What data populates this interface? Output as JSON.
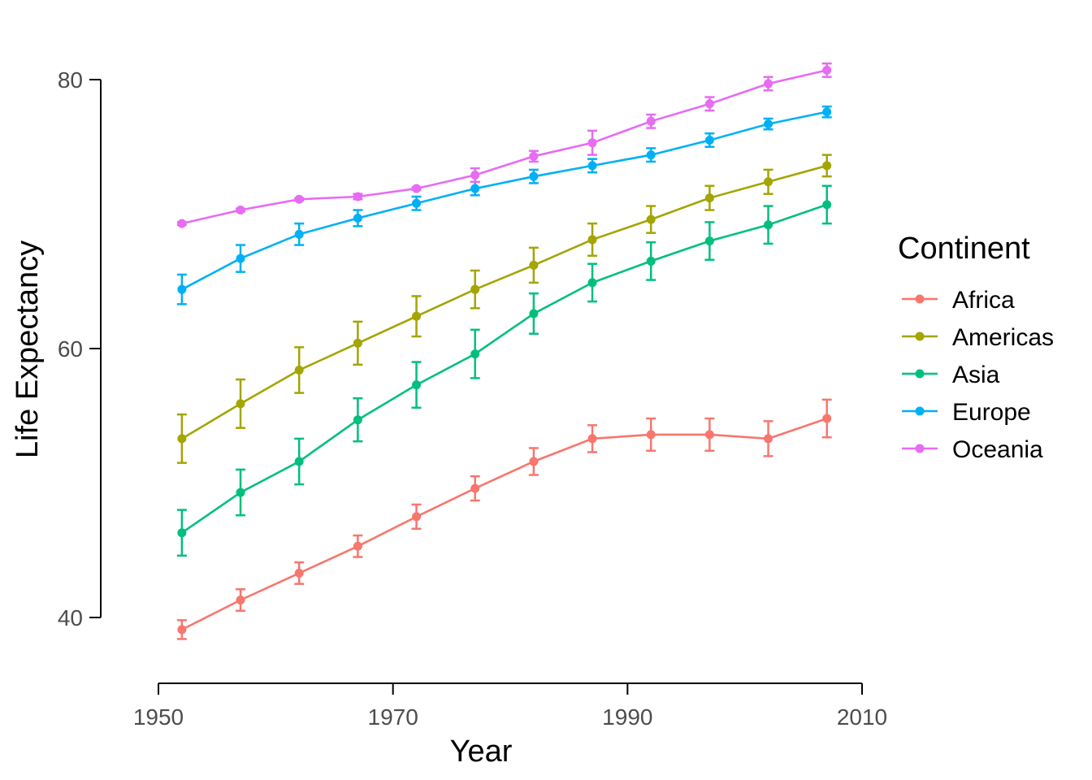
{
  "chart_data": {
    "type": "line",
    "title": "",
    "xlabel": "Year",
    "ylabel": "Life Expectancy",
    "xlim": [
      1950,
      2010
    ],
    "ylim": [
      40,
      80
    ],
    "x_ticks": [
      "1950",
      "1970",
      "1990",
      "2010"
    ],
    "y_ticks": [
      "40",
      "60",
      "80"
    ],
    "x": [
      1952,
      1957,
      1962,
      1967,
      1972,
      1977,
      1982,
      1987,
      1992,
      1997,
      2002,
      2007
    ],
    "error_bars": true,
    "grid": false,
    "legend": {
      "title": "Continent",
      "position": "right"
    },
    "series": [
      {
        "name": "Africa",
        "color": "#F8766D",
        "values": [
          39.1,
          41.3,
          43.3,
          45.3,
          47.5,
          49.6,
          51.6,
          53.3,
          53.6,
          53.6,
          53.3,
          54.8
        ],
        "errors": [
          0.7,
          0.8,
          0.8,
          0.8,
          0.9,
          0.9,
          1.0,
          1.0,
          1.2,
          1.2,
          1.3,
          1.4
        ]
      },
      {
        "name": "Americas",
        "color": "#A3A500",
        "values": [
          53.3,
          55.9,
          58.4,
          60.4,
          62.4,
          64.4,
          66.2,
          68.1,
          69.6,
          71.2,
          72.4,
          73.6
        ],
        "errors": [
          1.8,
          1.8,
          1.7,
          1.6,
          1.5,
          1.4,
          1.3,
          1.2,
          1.0,
          0.9,
          0.9,
          0.8
        ]
      },
      {
        "name": "Asia",
        "color": "#00BF7D",
        "values": [
          46.3,
          49.3,
          51.6,
          54.7,
          57.3,
          59.6,
          62.6,
          64.9,
          66.5,
          68.0,
          69.2,
          70.7
        ],
        "errors": [
          1.7,
          1.7,
          1.7,
          1.6,
          1.7,
          1.8,
          1.5,
          1.4,
          1.4,
          1.4,
          1.4,
          1.4
        ]
      },
      {
        "name": "Europe",
        "color": "#00B0F6",
        "values": [
          64.4,
          66.7,
          68.5,
          69.7,
          70.8,
          71.9,
          72.8,
          73.6,
          74.4,
          75.5,
          76.7,
          77.6
        ],
        "errors": [
          1.1,
          1.0,
          0.8,
          0.6,
          0.5,
          0.5,
          0.5,
          0.5,
          0.5,
          0.5,
          0.4,
          0.4
        ]
      },
      {
        "name": "Oceania",
        "color": "#E76BF3",
        "values": [
          69.3,
          70.3,
          71.1,
          71.3,
          71.9,
          72.9,
          74.3,
          75.3,
          76.9,
          78.2,
          79.7,
          80.7
        ],
        "errors": [
          0.1,
          0.1,
          0.1,
          0.2,
          0.1,
          0.5,
          0.4,
          0.9,
          0.5,
          0.5,
          0.5,
          0.5
        ]
      }
    ]
  }
}
